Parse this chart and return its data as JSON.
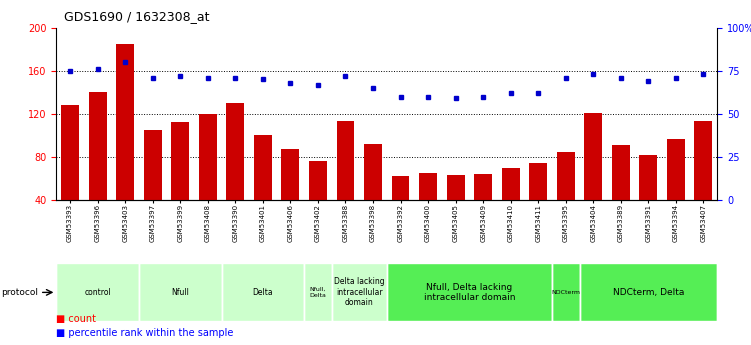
{
  "title": "GDS1690 / 1632308_at",
  "samples": [
    "GSM53393",
    "GSM53396",
    "GSM53403",
    "GSM53397",
    "GSM53399",
    "GSM53408",
    "GSM53390",
    "GSM53401",
    "GSM53406",
    "GSM53402",
    "GSM53388",
    "GSM53398",
    "GSM53392",
    "GSM53400",
    "GSM53405",
    "GSM53409",
    "GSM53410",
    "GSM53411",
    "GSM53395",
    "GSM53404",
    "GSM53389",
    "GSM53391",
    "GSM53394",
    "GSM53407"
  ],
  "counts": [
    128,
    140,
    185,
    105,
    112,
    120,
    130,
    100,
    87,
    76,
    113,
    92,
    62,
    65,
    63,
    64,
    70,
    74,
    85,
    121,
    91,
    82,
    97,
    113
  ],
  "percentiles": [
    75,
    76,
    80,
    71,
    72,
    71,
    71,
    70,
    68,
    67,
    72,
    65,
    60,
    60,
    59,
    60,
    62,
    62,
    71,
    73,
    71,
    69,
    71,
    73
  ],
  "groups": [
    {
      "label": "control",
      "start": 0,
      "end": 3,
      "color": "#ccffcc",
      "bright": false
    },
    {
      "label": "Nfull",
      "start": 3,
      "end": 6,
      "color": "#ccffcc",
      "bright": false
    },
    {
      "label": "Delta",
      "start": 6,
      "end": 9,
      "color": "#ccffcc",
      "bright": false
    },
    {
      "label": "Nfull,\nDelta",
      "start": 9,
      "end": 10,
      "color": "#ccffcc",
      "bright": false
    },
    {
      "label": "Delta lacking\nintracellular\ndomain",
      "start": 10,
      "end": 12,
      "color": "#ccffcc",
      "bright": false
    },
    {
      "label": "Nfull, Delta lacking\nintracellular domain",
      "start": 12,
      "end": 18,
      "color": "#55ee55",
      "bright": true
    },
    {
      "label": "NDCterm",
      "start": 18,
      "end": 19,
      "color": "#55ee55",
      "bright": true
    },
    {
      "label": "NDCterm, Delta",
      "start": 19,
      "end": 24,
      "color": "#55ee55",
      "bright": true
    }
  ],
  "bar_color": "#cc0000",
  "dot_color": "#0000cc",
  "ylim_left": [
    40,
    200
  ],
  "ylim_right": [
    0,
    100
  ],
  "yticks_left": [
    40,
    80,
    120,
    160,
    200
  ],
  "yticks_right": [
    0,
    25,
    50,
    75,
    100
  ],
  "ytick_labels_right": [
    "0",
    "25",
    "50",
    "75",
    "100%"
  ],
  "grid_lines": [
    80,
    120,
    160
  ],
  "bg_color": "#ffffff"
}
